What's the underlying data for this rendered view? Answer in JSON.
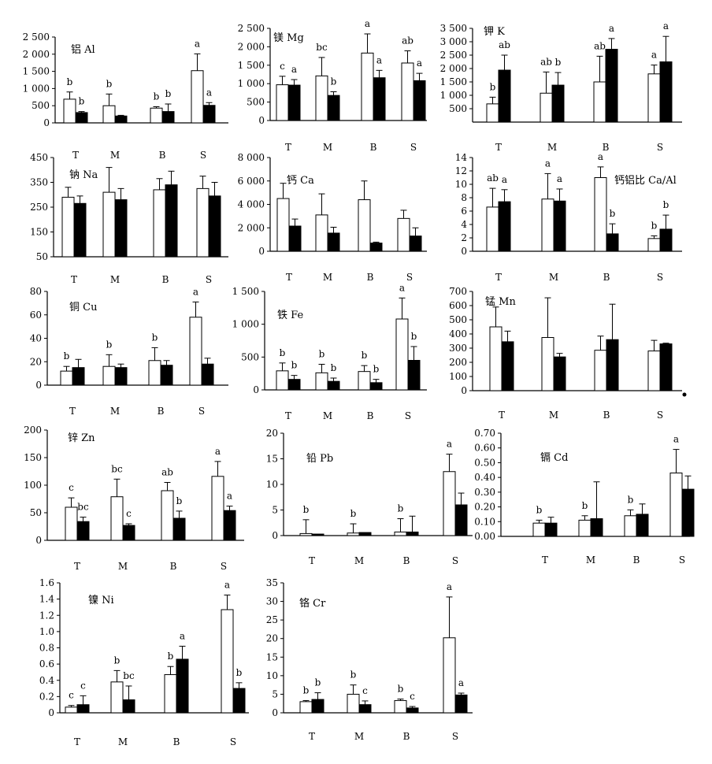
{
  "chart_data": [
    {
      "type": "bar",
      "title": "铝 Al",
      "categories": [
        "T",
        "M",
        "B",
        "S"
      ],
      "ylim": [
        0,
        2500
      ],
      "yticks": [
        0,
        500,
        1000,
        1500,
        2000,
        2500
      ],
      "yticklabels": [
        "0",
        "500",
        "1 000",
        "1 500",
        "2 000",
        "2 500"
      ],
      "series": [
        {
          "values": [
            690,
            500,
            430,
            1520
          ],
          "errors": [
            210,
            340,
            40,
            490
          ],
          "letters": [
            "b",
            "b",
            "b",
            "a"
          ]
        },
        {
          "values": [
            300,
            200,
            330,
            510
          ],
          "errors": [
            30,
            20,
            220,
            80
          ],
          "letters": [
            "b",
            "",
            "b",
            "a"
          ]
        }
      ]
    },
    {
      "type": "bar",
      "title": "镁 Mg",
      "categories": [
        "T",
        "M",
        "B",
        "S"
      ],
      "ylim": [
        0,
        2500
      ],
      "yticks": [
        0,
        500,
        1000,
        1500,
        2000,
        2500
      ],
      "yticklabels": [
        "0",
        "500",
        "1 000",
        "1 500",
        "2 000",
        "2 500"
      ],
      "series": [
        {
          "values": [
            970,
            1210,
            1830,
            1560
          ],
          "errors": [
            230,
            500,
            520,
            330
          ],
          "letters": [
            "c",
            "bc",
            "a",
            "ab"
          ]
        },
        {
          "values": [
            960,
            680,
            1160,
            1080
          ],
          "errors": [
            150,
            100,
            200,
            200
          ],
          "letters": [
            "a",
            "b",
            "a",
            "a"
          ]
        }
      ]
    },
    {
      "type": "bar",
      "title": "钾 K",
      "categories": [
        "T",
        "M",
        "B",
        "S"
      ],
      "ylim": [
        0,
        3500
      ],
      "yticks": [
        500,
        1000,
        1500,
        2000,
        2500,
        3000,
        3500
      ],
      "yticklabels": [
        "500",
        "1 000",
        "1 500",
        "2 000",
        "2 500",
        "3 000",
        "3 500"
      ],
      "series": [
        {
          "values": [
            680,
            1080,
            1500,
            1800
          ],
          "errors": [
            250,
            790,
            960,
            330
          ],
          "letters": [
            "b",
            "ab",
            "ab",
            "a"
          ]
        },
        {
          "values": [
            1940,
            1380,
            2720,
            2250
          ],
          "errors": [
            560,
            470,
            400,
            950
          ],
          "letters": [
            "ab",
            "b",
            "a",
            "a"
          ]
        }
      ]
    },
    {
      "type": "bar",
      "title": "钠 Na",
      "categories": [
        "T",
        "M",
        "B",
        "S"
      ],
      "ylim": [
        50,
        450
      ],
      "yticks": [
        50,
        150,
        250,
        350,
        450
      ],
      "yticklabels": [
        "50",
        "150",
        "250",
        "350",
        "450"
      ],
      "series": [
        {
          "values": [
            290,
            310,
            320,
            325
          ],
          "errors": [
            40,
            100,
            45,
            50
          ],
          "letters": [
            "",
            "",
            "",
            ""
          ]
        },
        {
          "values": [
            265,
            280,
            340,
            295
          ],
          "errors": [
            30,
            45,
            55,
            55
          ],
          "letters": [
            "",
            "",
            "",
            ""
          ]
        }
      ]
    },
    {
      "type": "bar",
      "title": "钙 Ca",
      "categories": [
        "T",
        "M",
        "B",
        "S"
      ],
      "ylim": [
        0,
        8000
      ],
      "yticks": [
        0,
        2000,
        4000,
        6000,
        8000
      ],
      "yticklabels": [
        "0",
        "2 000",
        "4 000",
        "6 000",
        "8 000"
      ],
      "series": [
        {
          "values": [
            4500,
            3100,
            4400,
            2800
          ],
          "errors": [
            1300,
            1800,
            1600,
            700
          ],
          "letters": [
            "",
            "",
            "",
            ""
          ]
        },
        {
          "values": [
            2150,
            1550,
            700,
            1300
          ],
          "errors": [
            600,
            500,
            80,
            700
          ],
          "letters": [
            "",
            "",
            "",
            ""
          ]
        }
      ]
    },
    {
      "type": "bar",
      "title": "钙铝比 Ca/Al",
      "categories": [
        "T",
        "M",
        "B",
        "S"
      ],
      "ylim": [
        0,
        14
      ],
      "yticks": [
        0,
        2,
        4,
        6,
        8,
        10,
        12,
        14
      ],
      "yticklabels": [
        "0",
        "2",
        "4",
        "6",
        "8",
        "10",
        "12",
        "14"
      ],
      "series": [
        {
          "values": [
            6.6,
            7.8,
            11.0,
            1.9
          ],
          "errors": [
            2.8,
            3.8,
            1.6,
            0.4
          ],
          "letters": [
            "ab",
            "a",
            "a",
            "b"
          ]
        },
        {
          "values": [
            7.4,
            7.5,
            2.6,
            3.3
          ],
          "errors": [
            1.8,
            1.8,
            1.5,
            2.1
          ],
          "letters": [
            "a",
            "a",
            "b",
            "b"
          ]
        }
      ]
    },
    {
      "type": "bar",
      "title": "铜 Cu",
      "categories": [
        "T",
        "M",
        "B",
        "S"
      ],
      "ylim": [
        0,
        80
      ],
      "yticks": [
        0,
        20,
        40,
        60,
        80
      ],
      "yticklabels": [
        "0",
        "20",
        "40",
        "60",
        "80"
      ],
      "series": [
        {
          "values": [
            12,
            16,
            21,
            58
          ],
          "errors": [
            4,
            10,
            11,
            13
          ],
          "letters": [
            "b",
            "b",
            "b",
            "a"
          ]
        },
        {
          "values": [
            15,
            15,
            17,
            18
          ],
          "errors": [
            7,
            3,
            4,
            5
          ],
          "letters": [
            "",
            "",
            "",
            ""
          ]
        }
      ]
    },
    {
      "type": "bar",
      "title": "铁 Fe",
      "categories": [
        "T",
        "M",
        "B",
        "S"
      ],
      "ylim": [
        0,
        1500
      ],
      "yticks": [
        0,
        500,
        1000,
        1500
      ],
      "yticklabels": [
        "0",
        "500",
        "1 000",
        "1 500"
      ],
      "series": [
        {
          "values": [
            290,
            260,
            280,
            1080
          ],
          "errors": [
            120,
            130,
            90,
            320
          ],
          "letters": [
            "b",
            "b",
            "b",
            "a"
          ]
        },
        {
          "values": [
            160,
            130,
            110,
            450
          ],
          "errors": [
            60,
            50,
            50,
            210
          ],
          "letters": [
            "b",
            "b",
            "b",
            "b"
          ]
        }
      ]
    },
    {
      "type": "bar",
      "title": "锰 Mn",
      "categories": [
        "T",
        "M",
        "B",
        "S"
      ],
      "ylim": [
        0,
        700
      ],
      "yticks": [
        0,
        100,
        200,
        300,
        400,
        500,
        600,
        700
      ],
      "yticklabels": [
        "0",
        "100",
        "200",
        "300",
        "400",
        "500",
        "600",
        "700"
      ],
      "series": [
        {
          "values": [
            450,
            375,
            285,
            280
          ],
          "errors": [
            140,
            280,
            100,
            75
          ],
          "letters": [
            "",
            "",
            "",
            ""
          ]
        },
        {
          "values": [
            345,
            238,
            360,
            330
          ],
          "errors": [
            75,
            25,
            250,
            5
          ],
          "letters": [
            "",
            "",
            "",
            ""
          ]
        }
      ]
    },
    {
      "type": "bar",
      "title": "锌 Zn",
      "categories": [
        "T",
        "M",
        "B",
        "S"
      ],
      "ylim": [
        0,
        200
      ],
      "yticks": [
        0,
        50,
        100,
        150,
        200
      ],
      "yticklabels": [
        "0",
        "50",
        "100",
        "150",
        "200"
      ],
      "series": [
        {
          "values": [
            60,
            79,
            90,
            116
          ],
          "errors": [
            17,
            32,
            15,
            27
          ],
          "letters": [
            "c",
            "bc",
            "ab",
            "a"
          ]
        },
        {
          "values": [
            34,
            27,
            40,
            54
          ],
          "errors": [
            8,
            3,
            13,
            8
          ],
          "letters": [
            "bc",
            "c",
            "b",
            "a"
          ]
        }
      ]
    },
    {
      "type": "bar",
      "title": "铅 Pb",
      "categories": [
        "T",
        "M",
        "B",
        "S"
      ],
      "ylim": [
        0,
        20
      ],
      "yticks": [
        0,
        5,
        10,
        15,
        20
      ],
      "yticklabels": [
        "0",
        "5",
        "10",
        "15",
        "20"
      ],
      "series": [
        {
          "values": [
            0.4,
            0.5,
            0.7,
            12.5
          ],
          "errors": [
            2.7,
            1.8,
            2.6,
            3.4
          ],
          "letters": [
            "b",
            "b",
            "b",
            "a"
          ]
        },
        {
          "values": [
            0.3,
            0.6,
            0.7,
            6.0
          ],
          "errors": [
            0,
            0,
            3.1,
            2.3
          ],
          "letters": [
            "",
            "",
            "",
            ""
          ]
        }
      ]
    },
    {
      "type": "bar",
      "title": "镉 Cd",
      "categories": [
        "T",
        "M",
        "B",
        "S"
      ],
      "ylim": [
        0,
        0.7
      ],
      "yticks": [
        0,
        0.1,
        0.2,
        0.3,
        0.4,
        0.5,
        0.6,
        0.7
      ],
      "yticklabels": [
        "0.00",
        "0.10",
        "0.20",
        "0.30",
        "0.40",
        "0.50",
        "0.60",
        "0.70"
      ],
      "series": [
        {
          "values": [
            0.09,
            0.11,
            0.14,
            0.43
          ],
          "errors": [
            0.02,
            0.03,
            0.04,
            0.16
          ],
          "letters": [
            "b",
            "b",
            "b",
            "a"
          ]
        },
        {
          "values": [
            0.09,
            0.12,
            0.15,
            0.32
          ],
          "errors": [
            0.04,
            0.25,
            0.07,
            0.09
          ],
          "letters": [
            "",
            "",
            "",
            ""
          ]
        }
      ]
    },
    {
      "type": "bar",
      "title": "镍 Ni",
      "categories": [
        "T",
        "M",
        "B",
        "S"
      ],
      "ylim": [
        0,
        1.6
      ],
      "yticks": [
        0,
        0.2,
        0.4,
        0.6,
        0.8,
        1.0,
        1.2,
        1.4,
        1.6
      ],
      "yticklabels": [
        "0",
        "0.2",
        "0.4",
        "0.6",
        "0.8",
        "1.0",
        "1.2",
        "1.4",
        "1.6"
      ],
      "series": [
        {
          "values": [
            0.07,
            0.38,
            0.47,
            1.27
          ],
          "errors": [
            0.02,
            0.14,
            0.1,
            0.18
          ],
          "letters": [
            "c",
            "b",
            "b",
            "a"
          ]
        },
        {
          "values": [
            0.1,
            0.16,
            0.66,
            0.3
          ],
          "errors": [
            0.11,
            0.17,
            0.16,
            0.07
          ],
          "letters": [
            "c",
            "bc",
            "a",
            "b"
          ]
        }
      ]
    },
    {
      "type": "bar",
      "title": "铬 Cr",
      "categories": [
        "T",
        "M",
        "B",
        "S"
      ],
      "ylim": [
        0,
        35
      ],
      "yticks": [
        0,
        5,
        10,
        15,
        20,
        25,
        30,
        35
      ],
      "yticklabels": [
        "0",
        "5",
        "10",
        "15",
        "20",
        "25",
        "30",
        "35"
      ],
      "series": [
        {
          "values": [
            3,
            5,
            3.3,
            20.2
          ],
          "errors": [
            0.3,
            2.5,
            0.4,
            11
          ],
          "letters": [
            "b",
            "b",
            "b",
            "a"
          ]
        },
        {
          "values": [
            3.6,
            2.2,
            1.3,
            4.8
          ],
          "errors": [
            1.8,
            1,
            0.4,
            0.5
          ],
          "letters": [
            "b",
            "c",
            "c",
            "a"
          ]
        }
      ]
    }
  ]
}
